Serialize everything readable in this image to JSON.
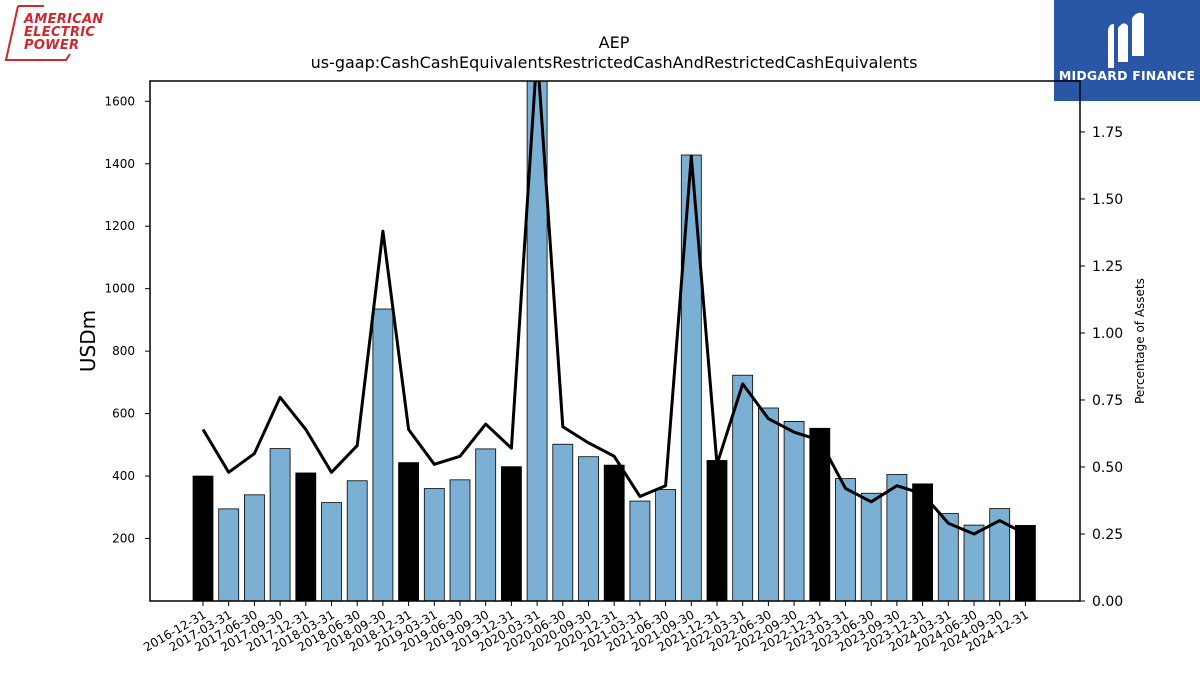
{
  "company_logo": {
    "lines": [
      "AMERICAN",
      "ELECTRIC",
      "POWER"
    ],
    "color": "#d0262d"
  },
  "brand_logo": {
    "text": "MIDGARD FINANCE",
    "background": "#2a56a6"
  },
  "chart_data": {
    "type": "bar",
    "title": "AEP",
    "subtitle": "us-gaap:CashCashEquivalentsRestrictedCashAndRestrictedCashEquivalents",
    "ylabel": "USDm",
    "ylabel_right": "Percentage of Assets",
    "ylim": [
      0,
      1665
    ],
    "ylim_right": [
      0,
      1.94
    ],
    "yticks": [
      200,
      400,
      600,
      800,
      1000,
      1200,
      1400,
      1600
    ],
    "yticks_right": [
      "0.00",
      "0.25",
      "0.50",
      "0.75",
      "1.00",
      "1.25",
      "1.50",
      "1.75"
    ],
    "categories": [
      "2016-12-31",
      "2017-03-31",
      "2017-06-30",
      "2017-09-30",
      "2017-12-31",
      "2018-03-31",
      "2018-06-30",
      "2018-09-30",
      "2018-12-31",
      "2019-03-31",
      "2019-06-30",
      "2019-09-30",
      "2019-12-31",
      "2020-03-31",
      "2020-06-30",
      "2020-09-30",
      "2020-12-31",
      "2021-03-31",
      "2021-06-30",
      "2021-09-30",
      "2021-12-31",
      "2022-03-31",
      "2022-06-30",
      "2022-09-30",
      "2022-12-31",
      "2023-03-31",
      "2023-06-30",
      "2023-09-30",
      "2023-12-31",
      "2024-03-31",
      "2024-06-30",
      "2024-09-30",
      "2024-12-31"
    ],
    "series": [
      {
        "values": [
          400,
          295,
          340,
          488,
          410,
          315,
          385,
          935,
          443,
          360,
          388,
          487,
          430,
          1700,
          502,
          462,
          435,
          320,
          357,
          1428,
          450,
          723,
          618,
          575,
          553,
          392,
          345,
          405,
          375,
          280,
          243,
          296,
          242
        ],
        "year_end_color": "#000000",
        "quarter_color": "#7bafd4"
      },
      {
        "axis": "right",
        "values": [
          0.64,
          0.48,
          0.55,
          0.76,
          0.64,
          0.48,
          0.58,
          1.38,
          0.64,
          0.51,
          0.54,
          0.66,
          0.57,
          2.05,
          0.65,
          0.59,
          0.54,
          0.39,
          0.43,
          1.66,
          0.51,
          0.81,
          0.68,
          0.63,
          0.6,
          0.42,
          0.37,
          0.43,
          0.4,
          0.29,
          0.25,
          0.3,
          0.25
        ],
        "color": "#000000"
      }
    ]
  }
}
